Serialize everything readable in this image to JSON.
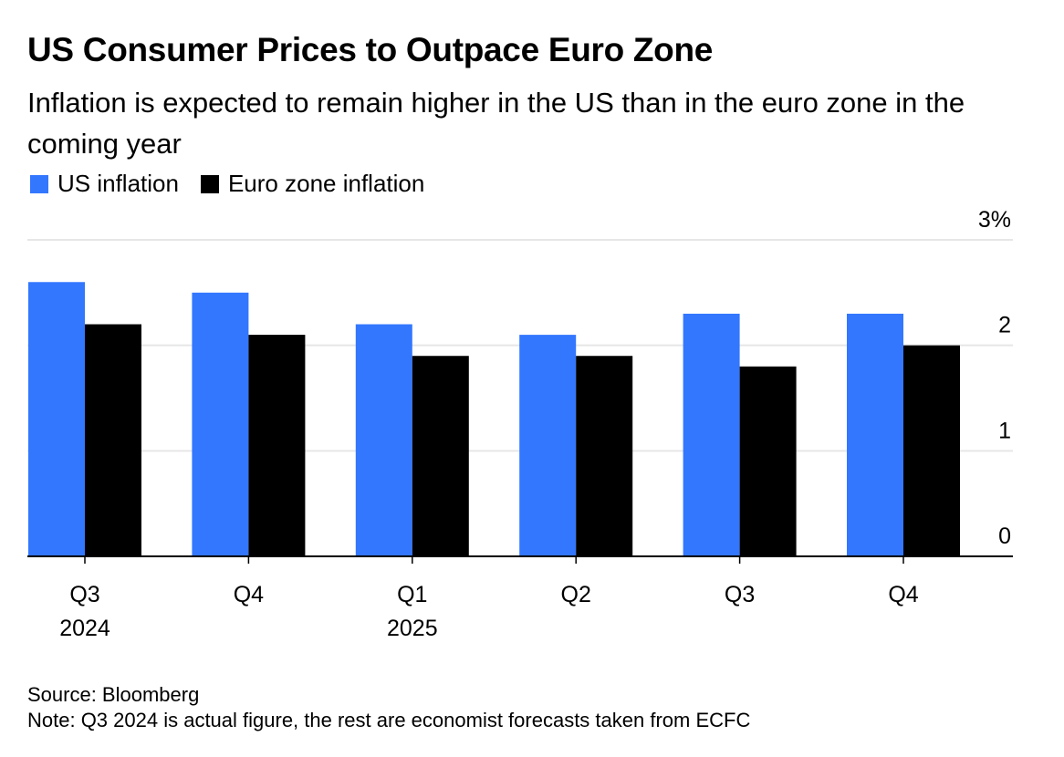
{
  "header": {
    "title": "US Consumer Prices to Outpace Euro Zone",
    "subtitle": "Inflation is expected to remain higher in the US than in the euro zone in the coming year"
  },
  "legend": {
    "items": [
      {
        "label": "US inflation",
        "color": "#3377ff"
      },
      {
        "label": "Euro zone inflation",
        "color": "#000000"
      }
    ]
  },
  "chart_data": {
    "type": "bar",
    "categories": [
      "Q3 2024",
      "Q4",
      "Q1 2025",
      "Q2",
      "Q3",
      "Q4"
    ],
    "category_labels": [
      [
        "Q3",
        "2024"
      ],
      [
        "Q4",
        ""
      ],
      [
        "Q1",
        "2025"
      ],
      [
        "Q2",
        ""
      ],
      [
        "Q3",
        ""
      ],
      [
        "Q4",
        ""
      ]
    ],
    "series": [
      {
        "name": "US inflation",
        "color": "#3377ff",
        "values": [
          2.6,
          2.5,
          2.2,
          2.1,
          2.3,
          2.3
        ]
      },
      {
        "name": "Euro zone inflation",
        "color": "#000000",
        "values": [
          2.2,
          2.1,
          1.9,
          1.9,
          1.8,
          2.0
        ]
      }
    ],
    "ylim": [
      0,
      3
    ],
    "yticks": [
      0,
      1,
      2,
      3
    ],
    "ytick_labels": [
      "0",
      "1",
      "2",
      "3%"
    ],
    "y_axis_side": "right",
    "grid": true,
    "legend_position": "top-left"
  },
  "footer": {
    "source": "Source: Bloomberg",
    "note": "Note: Q3 2024 is actual figure, the rest are economist forecasts taken from ECFC"
  }
}
